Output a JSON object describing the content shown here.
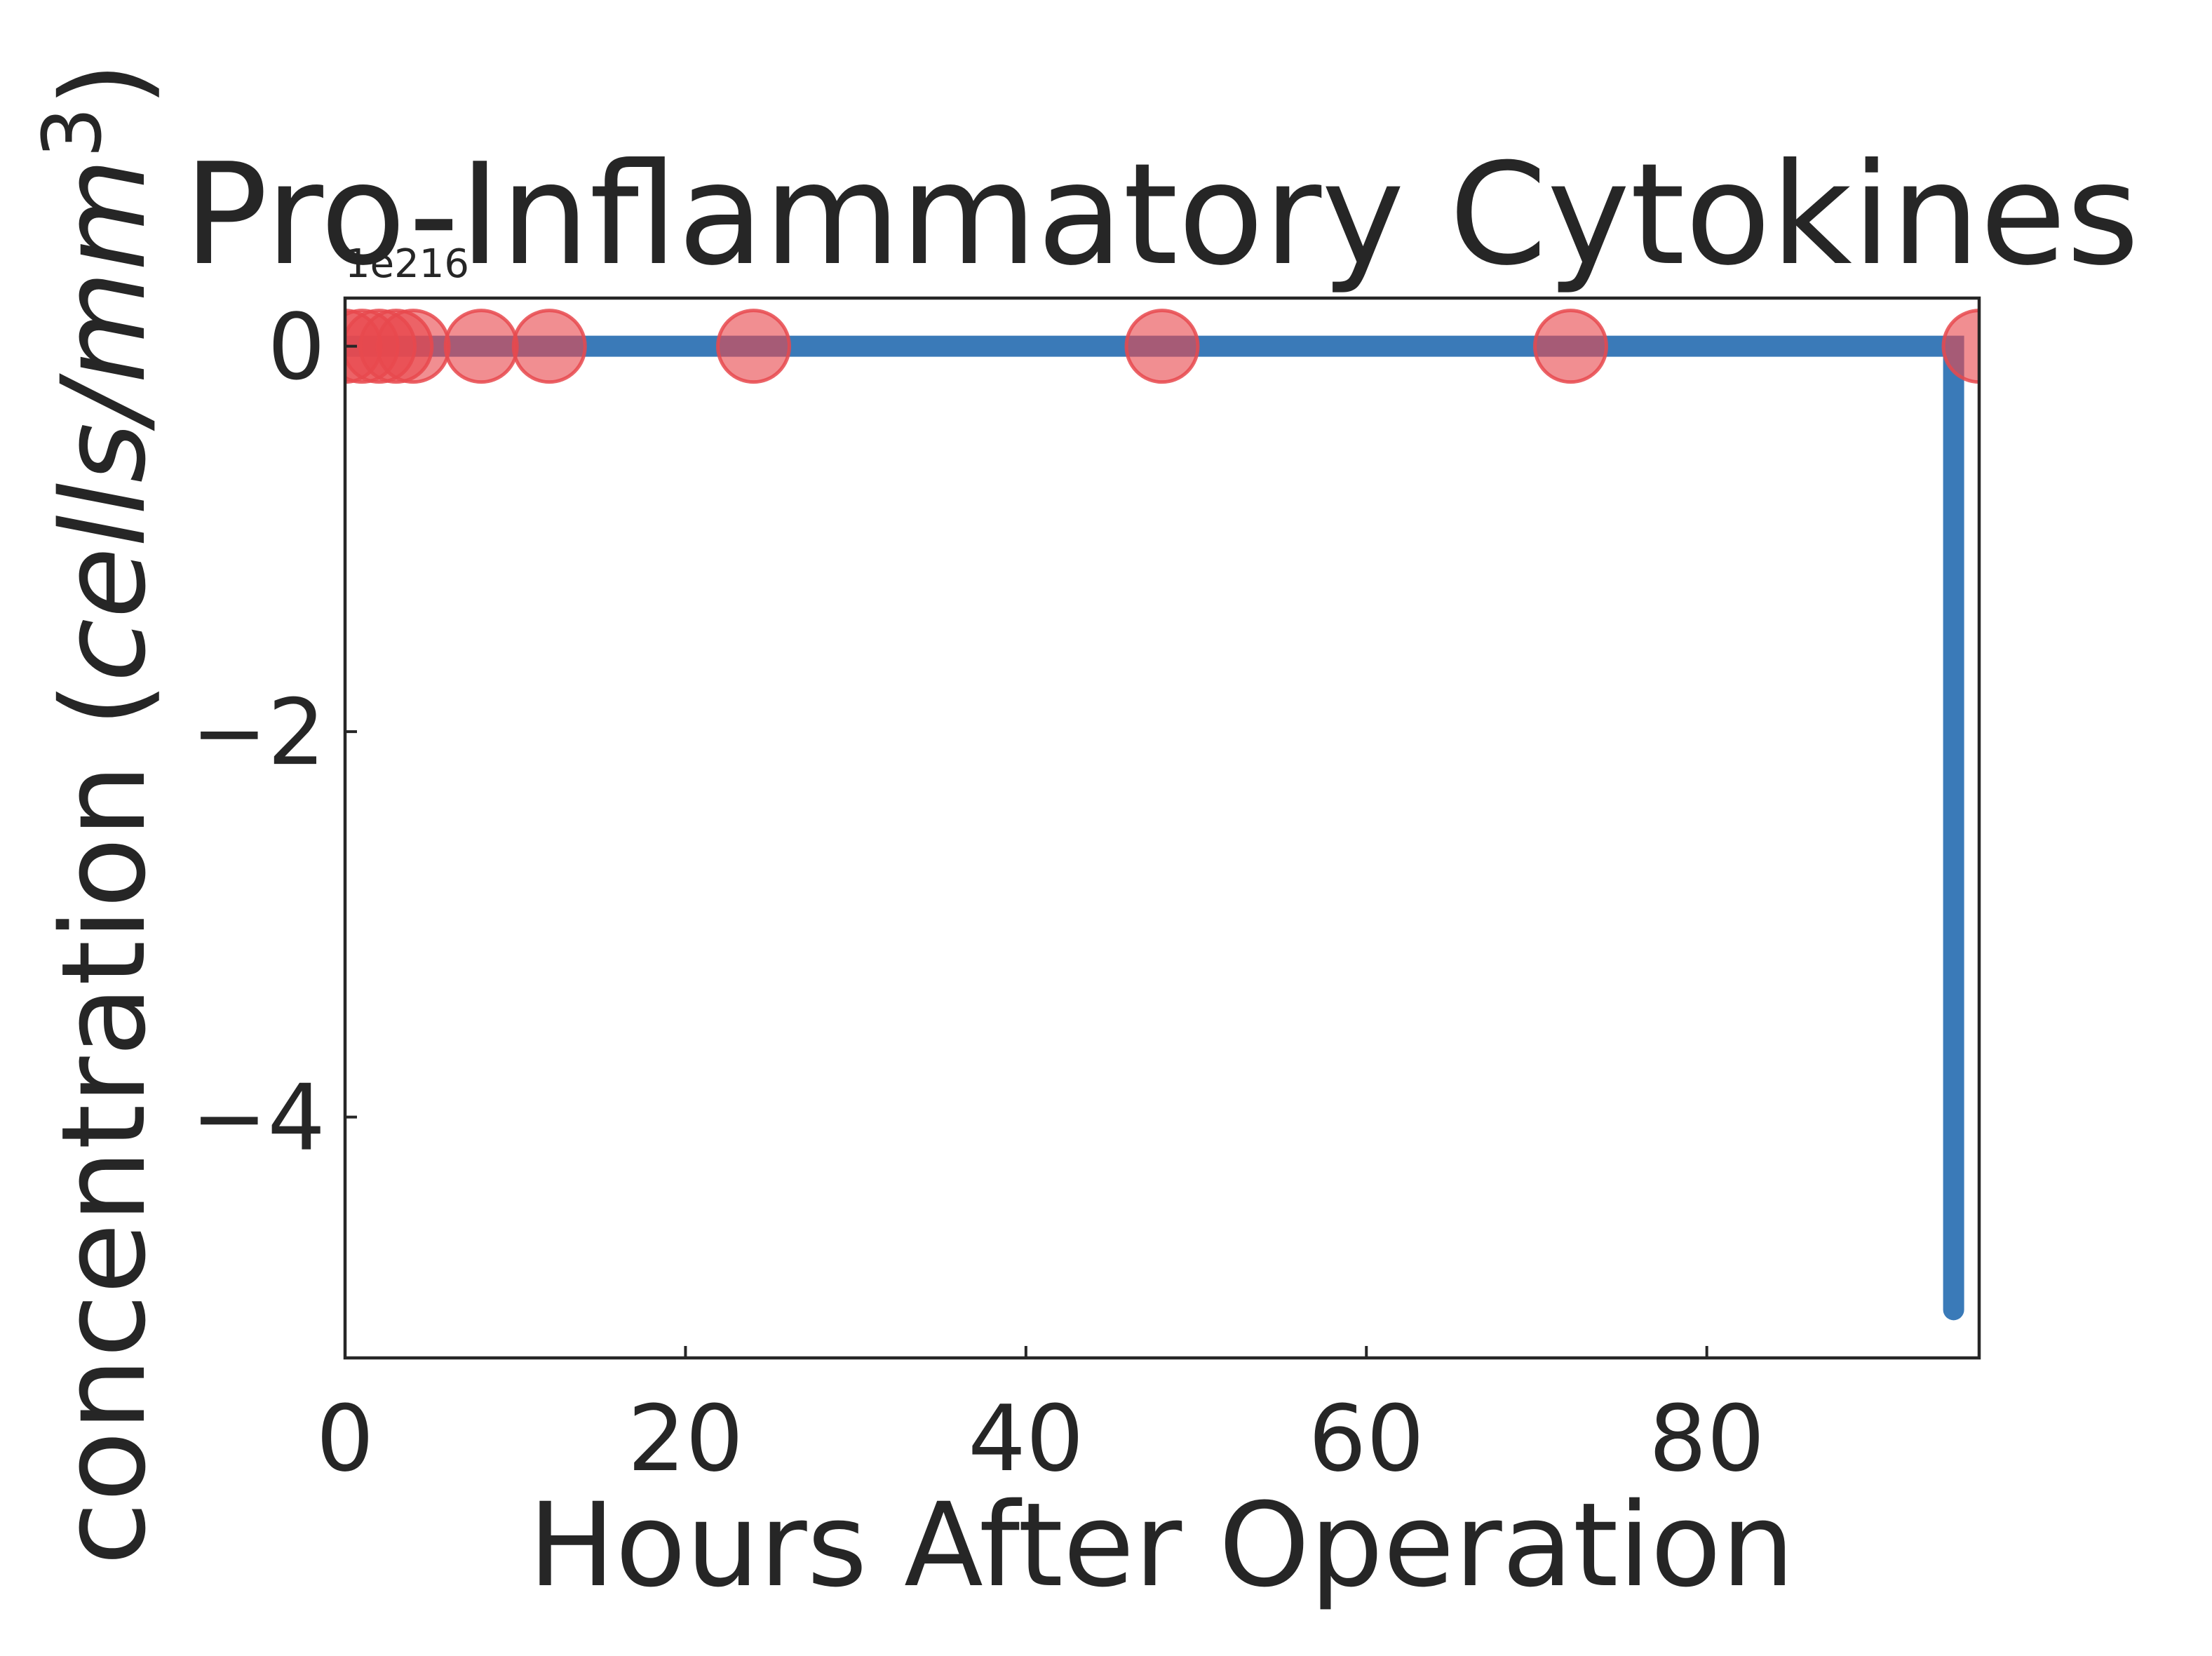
{
  "chart_data": {
    "type": "line",
    "title": "Pro-Inflammatory Cytokines",
    "xlabel": "Hours After Operation",
    "ylabel_main": "concentration (",
    "ylabel_unit": "cells/mm",
    "ylabel_sup": "3",
    "ylabel_close": ")",
    "offset_text": "1e216",
    "xlim": [
      0,
      96
    ],
    "ylim": [
      -5.25,
      0.25
    ],
    "x_ticks": [
      0,
      20,
      40,
      60,
      80
    ],
    "x_tick_labels": [
      "0",
      "20",
      "40",
      "60",
      "80"
    ],
    "y_ticks": [
      0,
      -2,
      -4
    ],
    "y_tick_labels": [
      "0",
      "−2",
      "−4"
    ],
    "grid": false,
    "series": [
      {
        "kind": "line",
        "color": "#3a7ab8",
        "x": [
          0,
          94.5,
          94.5
        ],
        "y": [
          0,
          0,
          -5
        ]
      },
      {
        "kind": "scatter",
        "color": "#e8494d",
        "x": [
          0,
          1,
          2,
          3,
          4,
          8,
          12,
          24,
          48,
          72,
          96
        ],
        "y": [
          0,
          0,
          0,
          0,
          0,
          0,
          0,
          0,
          0,
          0,
          0
        ]
      }
    ]
  }
}
